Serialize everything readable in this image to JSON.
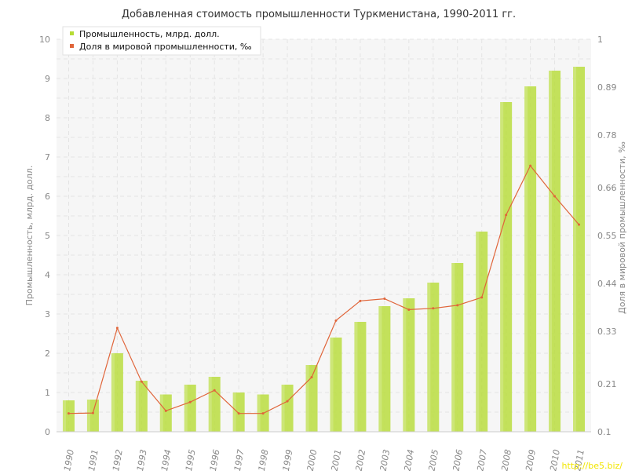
{
  "chart_data": {
    "type": "bar+line",
    "title": "Добавленная стоимость промышленности Туркменистана, 1990-2011 гг.",
    "categories": [
      "1990",
      "1991",
      "1992",
      "1993",
      "1994",
      "1995",
      "1996",
      "1997",
      "1998",
      "1999",
      "2000",
      "2001",
      "2002",
      "2003",
      "2004",
      "2005",
      "2006",
      "2007",
      "2008",
      "2009",
      "2010",
      "2011"
    ],
    "series": [
      {
        "name": "Промышленность, млрд. долл.",
        "type": "bar",
        "axis": "left",
        "color": "#b6dc34",
        "values": [
          0.8,
          0.82,
          2.0,
          1.3,
          0.95,
          1.2,
          1.4,
          1.0,
          0.95,
          1.2,
          1.7,
          2.4,
          2.8,
          3.2,
          3.4,
          3.8,
          4.3,
          5.1,
          8.4,
          8.8,
          9.2,
          9.3
        ]
      },
      {
        "name": "Доля в мировой промышленности, ‰",
        "type": "line",
        "axis": "right",
        "color": "#e0653a",
        "values": [
          0.142,
          0.143,
          0.338,
          0.215,
          0.148,
          0.168,
          0.195,
          0.142,
          0.142,
          0.17,
          0.225,
          0.355,
          0.4,
          0.405,
          0.38,
          0.383,
          0.39,
          0.408,
          0.597,
          0.71,
          0.64,
          0.575
        ]
      }
    ],
    "yleft": {
      "label": "Промышленность, млрд. долл.",
      "ylim": [
        0,
        10
      ],
      "ticks": [
        "0",
        "1",
        "2",
        "3",
        "4",
        "5",
        "6",
        "7",
        "8",
        "9",
        "10"
      ]
    },
    "yright": {
      "label": "Доля в мировой промышленности, ‰",
      "ylim": [
        0.1,
        1.0
      ],
      "ticks": [
        "0.1",
        "0.21",
        "0.33",
        "0.44",
        "0.55",
        "0.66",
        "0.78",
        "0.89",
        "1"
      ],
      "tick_values": [
        0.1,
        0.21,
        0.33,
        0.44,
        0.55,
        0.66,
        0.78,
        0.89,
        1.0
      ]
    },
    "grid": true,
    "legend": "top-left"
  },
  "watermark": "http://be5.biz/"
}
